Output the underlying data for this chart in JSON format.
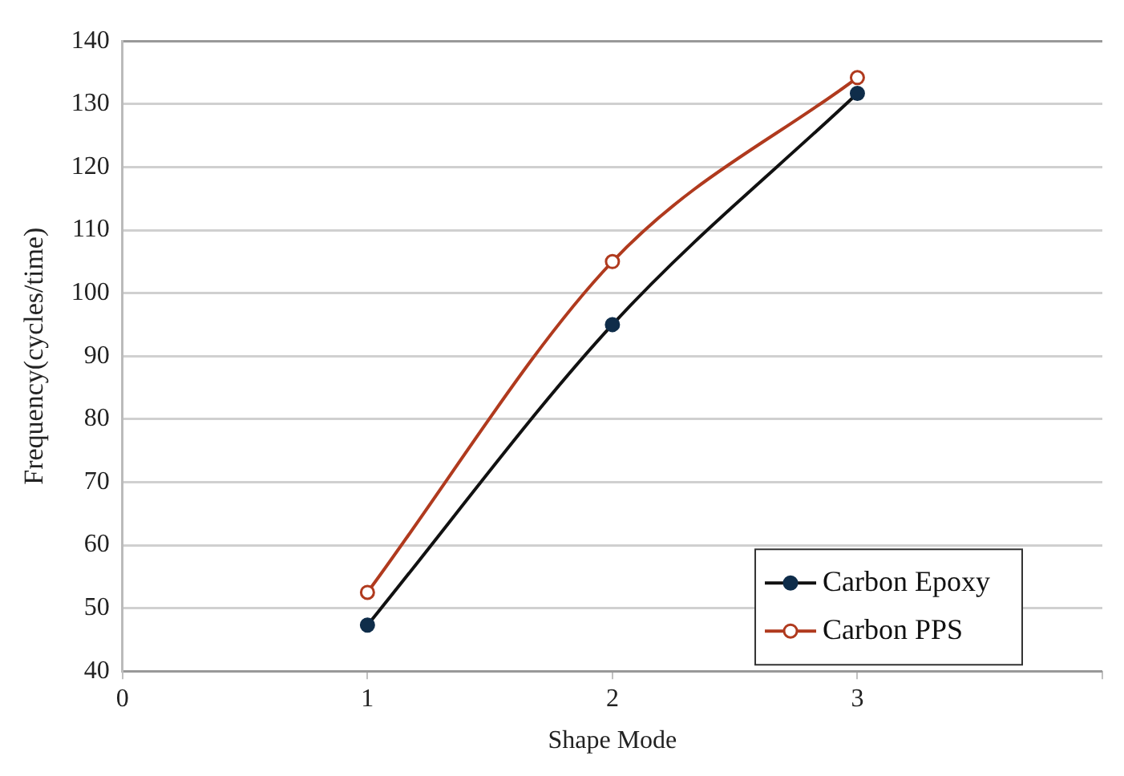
{
  "chart_data": {
    "type": "line",
    "xlabel": "Shape Mode",
    "ylabel": "Frequency(cycles/time)",
    "x": [
      1,
      2,
      3
    ],
    "series": [
      {
        "name": "Carbon Epoxy",
        "color": "#0f2d4a",
        "values": [
          47.3,
          95,
          131.7
        ]
      },
      {
        "name": "Carbon PPS",
        "color": "#b03a1e",
        "values": [
          52.5,
          105,
          134.2
        ]
      }
    ],
    "xlim": [
      0,
      4
    ],
    "xticks": [
      0,
      1,
      2,
      3,
      {
        "value": 4,
        "label": null
      }
    ],
    "ylim": [
      40,
      140
    ],
    "yticks": [
      40,
      50,
      60,
      70,
      80,
      90,
      100,
      110,
      120,
      130,
      140
    ],
    "grid": "y",
    "legend": "bottom right",
    "marker": "circle",
    "line_style": "solid"
  }
}
